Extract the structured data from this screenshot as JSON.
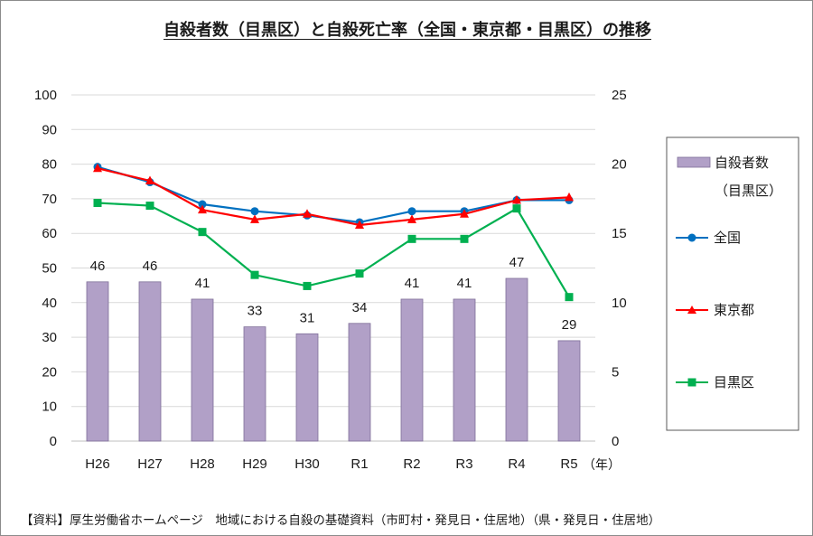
{
  "chart_data": {
    "type": "bar+line",
    "title": "自殺者数（目黒区）と自殺死亡率（全国・東京都・目黒区）の推移",
    "x_unit": "（年）",
    "categories": [
      "H26",
      "H27",
      "H28",
      "H29",
      "H30",
      "R1",
      "R2",
      "R3",
      "R4",
      "R5"
    ],
    "y_left": {
      "min": 0,
      "max": 100,
      "step": 10
    },
    "y_right": {
      "min": 0,
      "max": 25,
      "step": 5
    },
    "bar_series": {
      "name_line1": "自殺者数",
      "name_line2": "（目黒区）",
      "axis": "left",
      "color": "#b1a0c7",
      "values": [
        46,
        46,
        41,
        33,
        31,
        34,
        41,
        41,
        47,
        29
      ]
    },
    "line_series": [
      {
        "name": "全国",
        "axis": "right",
        "color": "#0070c0",
        "marker": "circle",
        "values": [
          19.8,
          18.7,
          17.1,
          16.6,
          16.3,
          15.8,
          16.6,
          16.6,
          17.4,
          17.4
        ]
      },
      {
        "name": "東京都",
        "axis": "right",
        "color": "#ff0000",
        "marker": "triangle",
        "values": [
          19.7,
          18.8,
          16.7,
          16.0,
          16.4,
          15.6,
          16.0,
          16.4,
          17.4,
          17.6
        ]
      },
      {
        "name": "目黒区",
        "axis": "right",
        "color": "#00b050",
        "marker": "square",
        "values": [
          17.2,
          17.0,
          15.1,
          12.0,
          11.2,
          12.1,
          14.6,
          14.6,
          16.8,
          10.4
        ]
      }
    ],
    "grid": true,
    "legend": "right"
  },
  "source": "【資料】厚生労働省ホームページ　地域における自殺の基礎資料（市町村・発見日・住居地）（県・発見日・住居地）"
}
